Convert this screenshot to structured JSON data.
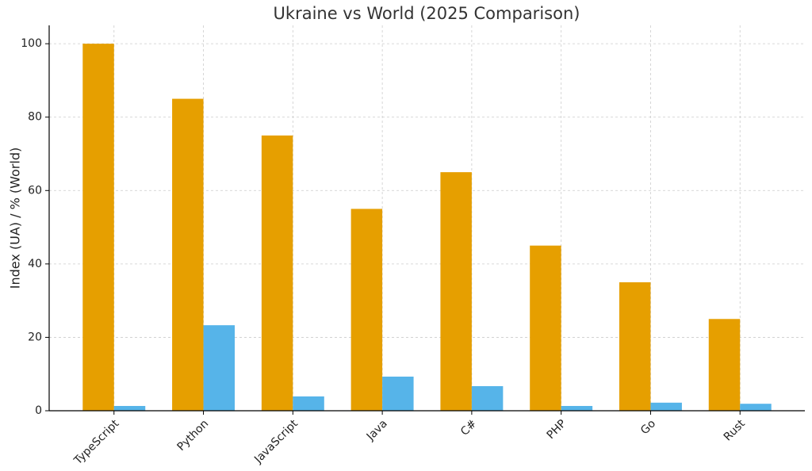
{
  "chart_data": {
    "type": "bar",
    "title": "Ukraine vs World (2025 Comparison)",
    "y_label": "Index (UA) / % (World)",
    "categories": [
      "TypeScript",
      "Python",
      "JavaScript",
      "Java",
      "C#",
      "PHP",
      "Go",
      "Rust"
    ],
    "series": [
      {
        "color": "#e69f00",
        "values": [
          100,
          85,
          75,
          55,
          65,
          45,
          35,
          25
        ]
      },
      {
        "color": "#56b4e9",
        "values": [
          1.3,
          23.3,
          3.9,
          9.3,
          6.7,
          1.3,
          2.2,
          1.9
        ]
      }
    ],
    "ylim": [
      0,
      105
    ],
    "yticks": [
      0,
      20,
      40,
      60,
      80,
      100
    ],
    "grid": true
  }
}
